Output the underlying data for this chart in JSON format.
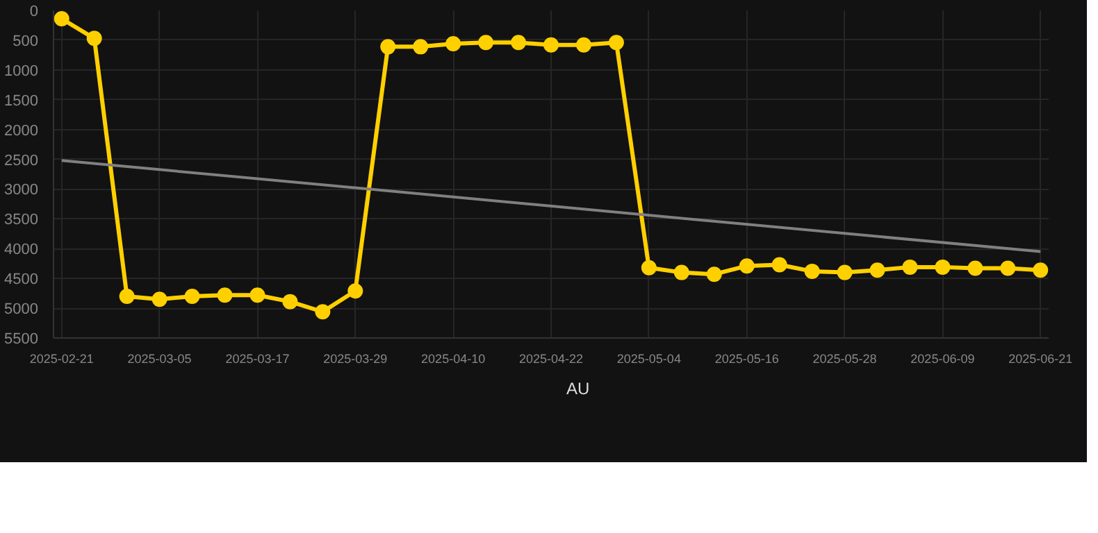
{
  "chart_data": {
    "type": "line",
    "x": [
      "2025-02-21",
      "2025-02-25",
      "2025-03-01",
      "2025-03-05",
      "2025-03-09",
      "2025-03-13",
      "2025-03-17",
      "2025-03-21",
      "2025-03-25",
      "2025-03-29",
      "2025-04-02",
      "2025-04-06",
      "2025-04-10",
      "2025-04-14",
      "2025-04-18",
      "2025-04-22",
      "2025-04-26",
      "2025-04-30",
      "2025-05-04",
      "2025-05-08",
      "2025-05-12",
      "2025-05-16",
      "2025-05-20",
      "2025-05-24",
      "2025-05-28",
      "2025-06-01",
      "2025-06-05",
      "2025-06-09",
      "2025-06-13",
      "2025-06-17",
      "2025-06-21"
    ],
    "series": [
      {
        "name": "AU",
        "color": "#ffd000",
        "marker": "circle",
        "values": [
          140,
          470,
          4800,
          4850,
          4800,
          4780,
          4780,
          4890,
          5060,
          4710,
          610,
          610,
          560,
          540,
          540,
          580,
          580,
          540,
          4320,
          4400,
          4430,
          4290,
          4270,
          4380,
          4400,
          4360,
          4310,
          4310,
          4330,
          4330,
          4360
        ]
      },
      {
        "type": "line",
        "color": "#808080",
        "marker": "none",
        "x": [
          "2025-02-21",
          "2025-06-21"
        ],
        "values": [
          2520,
          4050
        ]
      }
    ],
    "xlim": [
      "2025-02-20",
      "2025-06-22"
    ],
    "ylim": [
      5500,
      0
    ],
    "xticks": [
      "2025-02-21",
      "2025-03-05",
      "2025-03-17",
      "2025-03-29",
      "2025-04-10",
      "2025-04-22",
      "2025-05-04",
      "2025-05-16",
      "2025-05-28",
      "2025-06-09",
      "2025-06-21"
    ],
    "yticks": [
      0,
      500,
      1000,
      1500,
      2000,
      2500,
      3000,
      3500,
      4000,
      4500,
      5000,
      5500
    ],
    "grid": true,
    "legend": "bottom",
    "line_style": "solid"
  }
}
